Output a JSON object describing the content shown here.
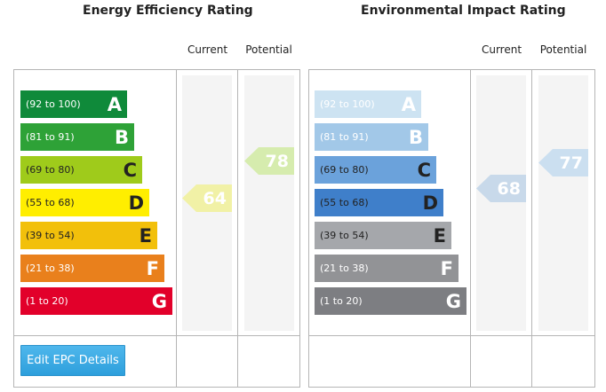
{
  "energy": {
    "title": "Energy Efficiency Rating",
    "current_label": "Current",
    "potential_label": "Potential",
    "bands": [
      {
        "range": "(92 to 100)",
        "letter": "A",
        "color": "#0f8a3a",
        "text_color": "#ffffff"
      },
      {
        "range": "(81 to 91)",
        "letter": "B",
        "color": "#2ea237",
        "text_color": "#ffffff"
      },
      {
        "range": "(69 to 80)",
        "letter": "C",
        "color": "#9fcb1b",
        "text_color": "#222222"
      },
      {
        "range": "(55 to 68)",
        "letter": "D",
        "color": "#ffee00",
        "text_color": "#222222"
      },
      {
        "range": "(39 to 54)",
        "letter": "E",
        "color": "#f2c00b",
        "text_color": "#222222"
      },
      {
        "range": "(21 to 38)",
        "letter": "F",
        "color": "#e9801c",
        "text_color": "#ffffff"
      },
      {
        "range": "(1 to 20)",
        "letter": "G",
        "color": "#e2002a",
        "text_color": "#ffffff"
      }
    ],
    "current": {
      "value": "64",
      "color": "#f1f1a6"
    },
    "potential": {
      "value": "78",
      "color": "#d6ecae"
    },
    "button_label": "Edit EPC Details"
  },
  "environmental": {
    "title": "Environmental Impact Rating",
    "current_label": "Current",
    "potential_label": "Potential",
    "bands": [
      {
        "range": "(92 to 100)",
        "letter": "A",
        "color": "#cde3f2",
        "text_color": "#ffffff"
      },
      {
        "range": "(81 to 91)",
        "letter": "B",
        "color": "#a2c8e8",
        "text_color": "#ffffff"
      },
      {
        "range": "(69 to 80)",
        "letter": "C",
        "color": "#6ba2db",
        "text_color": "#222222"
      },
      {
        "range": "(55 to 68)",
        "letter": "D",
        "color": "#3f7fca",
        "text_color": "#222222"
      },
      {
        "range": "(39 to 54)",
        "letter": "E",
        "color": "#a5a7ab",
        "text_color": "#222222"
      },
      {
        "range": "(21 to 38)",
        "letter": "F",
        "color": "#929396",
        "text_color": "#ffffff"
      },
      {
        "range": "(1 to 20)",
        "letter": "G",
        "color": "#7d7e82",
        "text_color": "#ffffff"
      }
    ],
    "current": {
      "value": "68",
      "color": "#c8d9ea"
    },
    "potential": {
      "value": "77",
      "color": "#cbdff0"
    }
  }
}
